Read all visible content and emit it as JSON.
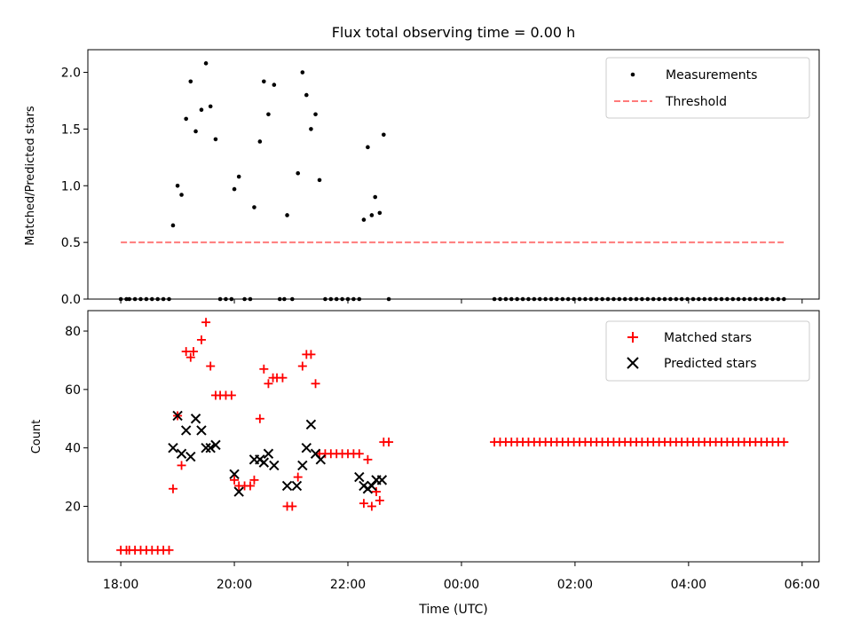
{
  "chart_data": [
    {
      "type": "scatter",
      "title": "Flux total observing time = 0.00 h",
      "xlabel": "",
      "ylabel": "Matched/Predicted stars",
      "x_is_time_hours": true,
      "xlim": [
        17.42,
        30.3
      ],
      "ylim": [
        0,
        2.2
      ],
      "yticks": [
        "0.0",
        "0.5",
        "1.0",
        "1.5",
        "2.0"
      ],
      "legend_position": "top-right",
      "grid": false,
      "series": [
        {
          "name": "Measurements",
          "marker": "dot",
          "color": "#000000",
          "points": [
            [
              18.0,
              0
            ],
            [
              18.1,
              0
            ],
            [
              18.15,
              0
            ],
            [
              18.25,
              0
            ],
            [
              18.35,
              0
            ],
            [
              18.45,
              0
            ],
            [
              18.55,
              0
            ],
            [
              18.65,
              0
            ],
            [
              18.75,
              0
            ],
            [
              18.85,
              0
            ],
            [
              18.92,
              0.65
            ],
            [
              19.0,
              1.0
            ],
            [
              19.07,
              0.92
            ],
            [
              19.15,
              1.59
            ],
            [
              19.23,
              1.92
            ],
            [
              19.32,
              1.48
            ],
            [
              19.42,
              1.67
            ],
            [
              19.5,
              2.08
            ],
            [
              19.58,
              1.7
            ],
            [
              19.67,
              1.41
            ],
            [
              19.75,
              0
            ],
            [
              19.85,
              0
            ],
            [
              19.95,
              0
            ],
            [
              20.0,
              0.97
            ],
            [
              20.08,
              1.08
            ],
            [
              20.18,
              0
            ],
            [
              20.28,
              0
            ],
            [
              20.35,
              0.81
            ],
            [
              20.45,
              1.39
            ],
            [
              20.52,
              1.92
            ],
            [
              20.6,
              1.63
            ],
            [
              20.7,
              1.89
            ],
            [
              20.8,
              0
            ],
            [
              20.88,
              0
            ],
            [
              20.93,
              0.74
            ],
            [
              21.02,
              0
            ],
            [
              21.12,
              1.11
            ],
            [
              21.2,
              2.0
            ],
            [
              21.27,
              1.8
            ],
            [
              21.35,
              1.5
            ],
            [
              21.43,
              1.63
            ],
            [
              21.5,
              1.05
            ],
            [
              21.6,
              0
            ],
            [
              21.7,
              0
            ],
            [
              21.8,
              0
            ],
            [
              21.9,
              0
            ],
            [
              22.0,
              0
            ],
            [
              22.1,
              0
            ],
            [
              22.2,
              0
            ],
            [
              22.28,
              0.7
            ],
            [
              22.35,
              1.34
            ],
            [
              22.42,
              0.74
            ],
            [
              22.48,
              0.9
            ],
            [
              22.56,
              0.76
            ],
            [
              22.63,
              1.45
            ],
            [
              22.72,
              0
            ],
            [
              24.58,
              0
            ],
            [
              24.68,
              0
            ],
            [
              24.78,
              0
            ],
            [
              24.88,
              0
            ],
            [
              24.98,
              0
            ],
            [
              25.08,
              0
            ],
            [
              25.18,
              0
            ],
            [
              25.28,
              0
            ],
            [
              25.38,
              0
            ],
            [
              25.48,
              0
            ],
            [
              25.58,
              0
            ],
            [
              25.68,
              0
            ],
            [
              25.78,
              0
            ],
            [
              25.88,
              0
            ],
            [
              25.98,
              0
            ],
            [
              26.08,
              0
            ],
            [
              26.18,
              0
            ],
            [
              26.28,
              0
            ],
            [
              26.38,
              0
            ],
            [
              26.48,
              0
            ],
            [
              26.58,
              0
            ],
            [
              26.68,
              0
            ],
            [
              26.78,
              0
            ],
            [
              26.88,
              0
            ],
            [
              26.98,
              0
            ],
            [
              27.08,
              0
            ],
            [
              27.18,
              0
            ],
            [
              27.28,
              0
            ],
            [
              27.38,
              0
            ],
            [
              27.48,
              0
            ],
            [
              27.58,
              0
            ],
            [
              27.68,
              0
            ],
            [
              27.78,
              0
            ],
            [
              27.88,
              0
            ],
            [
              27.98,
              0
            ],
            [
              28.08,
              0
            ],
            [
              28.18,
              0
            ],
            [
              28.28,
              0
            ],
            [
              28.38,
              0
            ],
            [
              28.48,
              0
            ],
            [
              28.58,
              0
            ],
            [
              28.68,
              0
            ],
            [
              28.78,
              0
            ],
            [
              28.88,
              0
            ],
            [
              28.98,
              0
            ],
            [
              29.08,
              0
            ],
            [
              29.18,
              0
            ],
            [
              29.28,
              0
            ],
            [
              29.38,
              0
            ],
            [
              29.48,
              0
            ],
            [
              29.58,
              0
            ],
            [
              29.68,
              0
            ]
          ]
        },
        {
          "name": "Threshold",
          "line_style": "dashed",
          "color": "#ff7b7b",
          "points": [
            [
              18.0,
              0.5
            ],
            [
              29.7,
              0.5
            ]
          ]
        }
      ]
    },
    {
      "type": "scatter",
      "title": "",
      "xlabel": "Time (UTC)",
      "ylabel": "Count",
      "x_is_time_hours": true,
      "xlim": [
        17.42,
        30.3
      ],
      "ylim": [
        1,
        87
      ],
      "yticks": [
        "20",
        "40",
        "60",
        "80"
      ],
      "xticks": [
        "18:00",
        "20:00",
        "22:00",
        "00:00",
        "02:00",
        "04:00",
        "06:00"
      ],
      "legend_position": "top-right",
      "grid": false,
      "series": [
        {
          "name": "Matched stars",
          "marker": "plus",
          "color": "#ff0000",
          "points": [
            [
              18.0,
              5
            ],
            [
              18.1,
              5
            ],
            [
              18.15,
              5
            ],
            [
              18.25,
              5
            ],
            [
              18.35,
              5
            ],
            [
              18.45,
              5
            ],
            [
              18.55,
              5
            ],
            [
              18.65,
              5
            ],
            [
              18.75,
              5
            ],
            [
              18.85,
              5
            ],
            [
              18.92,
              26
            ],
            [
              19.0,
              51
            ],
            [
              19.07,
              34
            ],
            [
              19.15,
              73
            ],
            [
              19.23,
              71
            ],
            [
              19.28,
              73
            ],
            [
              19.42,
              77
            ],
            [
              19.5,
              83
            ],
            [
              19.58,
              68
            ],
            [
              19.67,
              58
            ],
            [
              19.75,
              58
            ],
            [
              19.85,
              58
            ],
            [
              19.95,
              58
            ],
            [
              20.0,
              29
            ],
            [
              20.08,
              27
            ],
            [
              20.18,
              27
            ],
            [
              20.28,
              27
            ],
            [
              20.35,
              29
            ],
            [
              20.45,
              50
            ],
            [
              20.52,
              67
            ],
            [
              20.6,
              62
            ],
            [
              20.68,
              64
            ],
            [
              20.75,
              64
            ],
            [
              20.85,
              64
            ],
            [
              20.93,
              20
            ],
            [
              21.02,
              20
            ],
            [
              21.12,
              30
            ],
            [
              21.2,
              68
            ],
            [
              21.27,
              72
            ],
            [
              21.35,
              72
            ],
            [
              21.43,
              62
            ],
            [
              21.5,
              38
            ],
            [
              21.6,
              38
            ],
            [
              21.7,
              38
            ],
            [
              21.8,
              38
            ],
            [
              21.9,
              38
            ],
            [
              22.0,
              38
            ],
            [
              22.1,
              38
            ],
            [
              22.2,
              38
            ],
            [
              22.28,
              21
            ],
            [
              22.35,
              36
            ],
            [
              22.42,
              20
            ],
            [
              22.5,
              25
            ],
            [
              22.56,
              22
            ],
            [
              22.63,
              42
            ],
            [
              22.72,
              42
            ],
            [
              24.58,
              42
            ],
            [
              24.68,
              42
            ],
            [
              24.78,
              42
            ],
            [
              24.88,
              42
            ],
            [
              24.98,
              42
            ],
            [
              25.08,
              42
            ],
            [
              25.18,
              42
            ],
            [
              25.28,
              42
            ],
            [
              25.38,
              42
            ],
            [
              25.48,
              42
            ],
            [
              25.58,
              42
            ],
            [
              25.68,
              42
            ],
            [
              25.78,
              42
            ],
            [
              25.88,
              42
            ],
            [
              25.98,
              42
            ],
            [
              26.08,
              42
            ],
            [
              26.18,
              42
            ],
            [
              26.28,
              42
            ],
            [
              26.38,
              42
            ],
            [
              26.48,
              42
            ],
            [
              26.58,
              42
            ],
            [
              26.68,
              42
            ],
            [
              26.78,
              42
            ],
            [
              26.88,
              42
            ],
            [
              26.98,
              42
            ],
            [
              27.08,
              42
            ],
            [
              27.18,
              42
            ],
            [
              27.28,
              42
            ],
            [
              27.38,
              42
            ],
            [
              27.48,
              42
            ],
            [
              27.58,
              42
            ],
            [
              27.68,
              42
            ],
            [
              27.78,
              42
            ],
            [
              27.88,
              42
            ],
            [
              27.98,
              42
            ],
            [
              28.08,
              42
            ],
            [
              28.18,
              42
            ],
            [
              28.28,
              42
            ],
            [
              28.38,
              42
            ],
            [
              28.48,
              42
            ],
            [
              28.58,
              42
            ],
            [
              28.68,
              42
            ],
            [
              28.78,
              42
            ],
            [
              28.88,
              42
            ],
            [
              28.98,
              42
            ],
            [
              29.08,
              42
            ],
            [
              29.18,
              42
            ],
            [
              29.28,
              42
            ],
            [
              29.38,
              42
            ],
            [
              29.48,
              42
            ],
            [
              29.58,
              42
            ],
            [
              29.68,
              42
            ]
          ]
        },
        {
          "name": "Predicted stars",
          "marker": "x",
          "color": "#000000",
          "points": [
            [
              18.92,
              40
            ],
            [
              19.0,
              51
            ],
            [
              19.07,
              38
            ],
            [
              19.15,
              46
            ],
            [
              19.23,
              37
            ],
            [
              19.32,
              50
            ],
            [
              19.42,
              46
            ],
            [
              19.5,
              40
            ],
            [
              19.58,
              40
            ],
            [
              19.67,
              41
            ],
            [
              20.0,
              31
            ],
            [
              20.08,
              25
            ],
            [
              20.35,
              36
            ],
            [
              20.45,
              36
            ],
            [
              20.52,
              35
            ],
            [
              20.6,
              38
            ],
            [
              20.7,
              34
            ],
            [
              20.93,
              27
            ],
            [
              21.1,
              27
            ],
            [
              21.2,
              34
            ],
            [
              21.27,
              40
            ],
            [
              21.35,
              48
            ],
            [
              21.43,
              38
            ],
            [
              21.52,
              36
            ],
            [
              22.2,
              30
            ],
            [
              22.28,
              27
            ],
            [
              22.35,
              26
            ],
            [
              22.42,
              27
            ],
            [
              22.5,
              29
            ],
            [
              22.6,
              29
            ]
          ]
        }
      ]
    }
  ]
}
